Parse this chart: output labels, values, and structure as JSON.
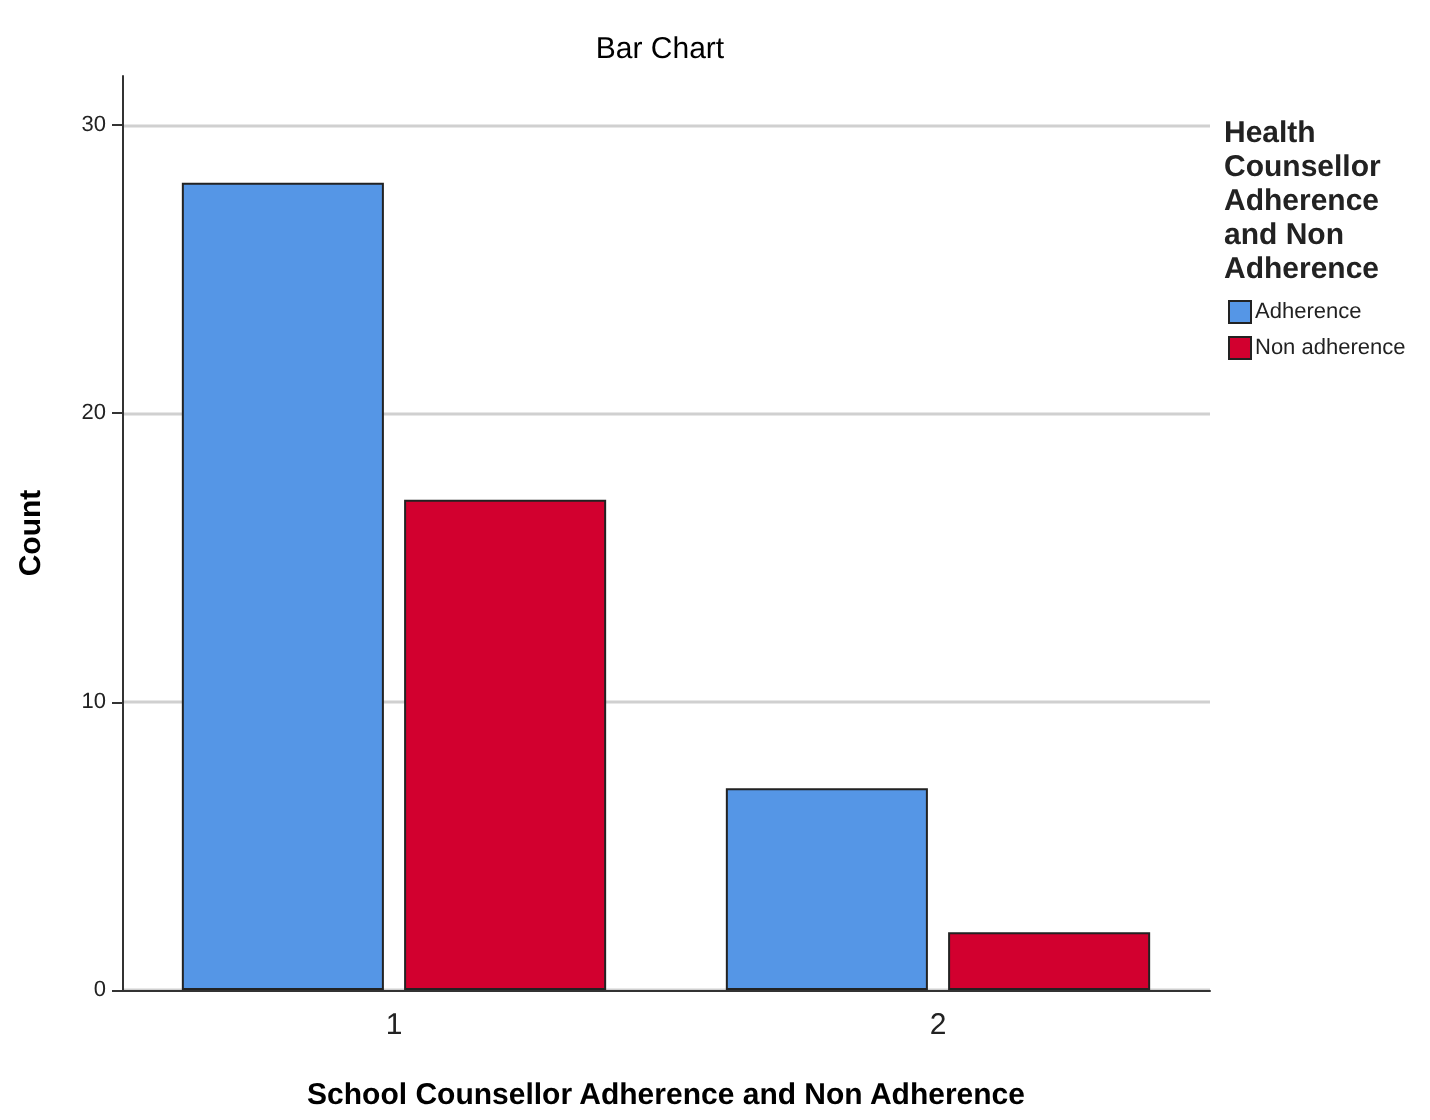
{
  "chart_data": {
    "type": "bar",
    "title": "Bar Chart",
    "xlabel": "School Counsellor Adherence and Non Adherence",
    "ylabel": "Count",
    "legend_title": "Health Counsellor Adherence and Non Adherence",
    "categories": [
      "1",
      "2"
    ],
    "series": [
      {
        "name": "Adherence",
        "color": "#5596e6",
        "values": [
          28,
          7
        ]
      },
      {
        "name": "Non adherence",
        "color": "#d2002f",
        "values": [
          17,
          2
        ]
      }
    ],
    "ylim": [
      0,
      31.7
    ],
    "yticks": [
      0,
      10,
      20,
      30
    ],
    "grid": "y",
    "legend": "right"
  }
}
